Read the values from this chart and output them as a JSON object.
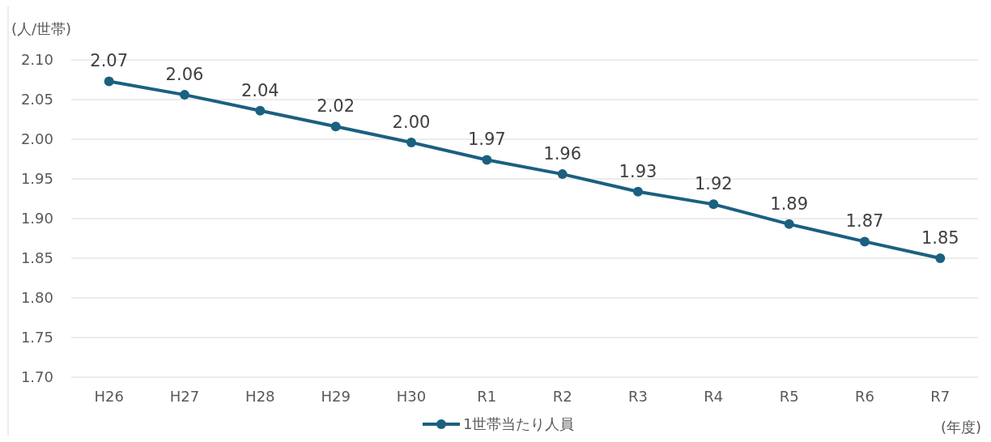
{
  "chart_data": {
    "type": "line",
    "ylabel": "(人/世帯)",
    "xlabel": "(年度)",
    "categories": [
      "H26",
      "H27",
      "H28",
      "H29",
      "H30",
      "R1",
      "R2",
      "R3",
      "R4",
      "R5",
      "R6",
      "R7"
    ],
    "series": [
      {
        "name": "1世帯当たり人員",
        "color": "#1b6080",
        "values": [
          2.073,
          2.056,
          2.036,
          2.016,
          1.996,
          1.974,
          1.956,
          1.934,
          1.918,
          1.893,
          1.871,
          1.85
        ],
        "value_labels": [
          "2.07",
          "2.06",
          "2.04",
          "2.02",
          "2.00",
          "1.97",
          "1.96",
          "1.93",
          "1.92",
          "1.89",
          "1.87",
          "1.85"
        ]
      }
    ],
    "ylim": [
      1.7,
      2.1
    ],
    "yticks": [
      {
        "value": 1.7,
        "label": "1.70"
      },
      {
        "value": 1.75,
        "label": "1.75"
      },
      {
        "value": 1.8,
        "label": "1.80"
      },
      {
        "value": 1.85,
        "label": "1.85"
      },
      {
        "value": 1.9,
        "label": "1.90"
      },
      {
        "value": 1.95,
        "label": "1.95"
      },
      {
        "value": 2.0,
        "label": "2.00"
      },
      {
        "value": 2.05,
        "label": "2.05"
      },
      {
        "value": 2.1,
        "label": "2.10"
      }
    ],
    "grid": "y",
    "legend": "bottom",
    "marker": "circle",
    "line_style": "solid"
  }
}
